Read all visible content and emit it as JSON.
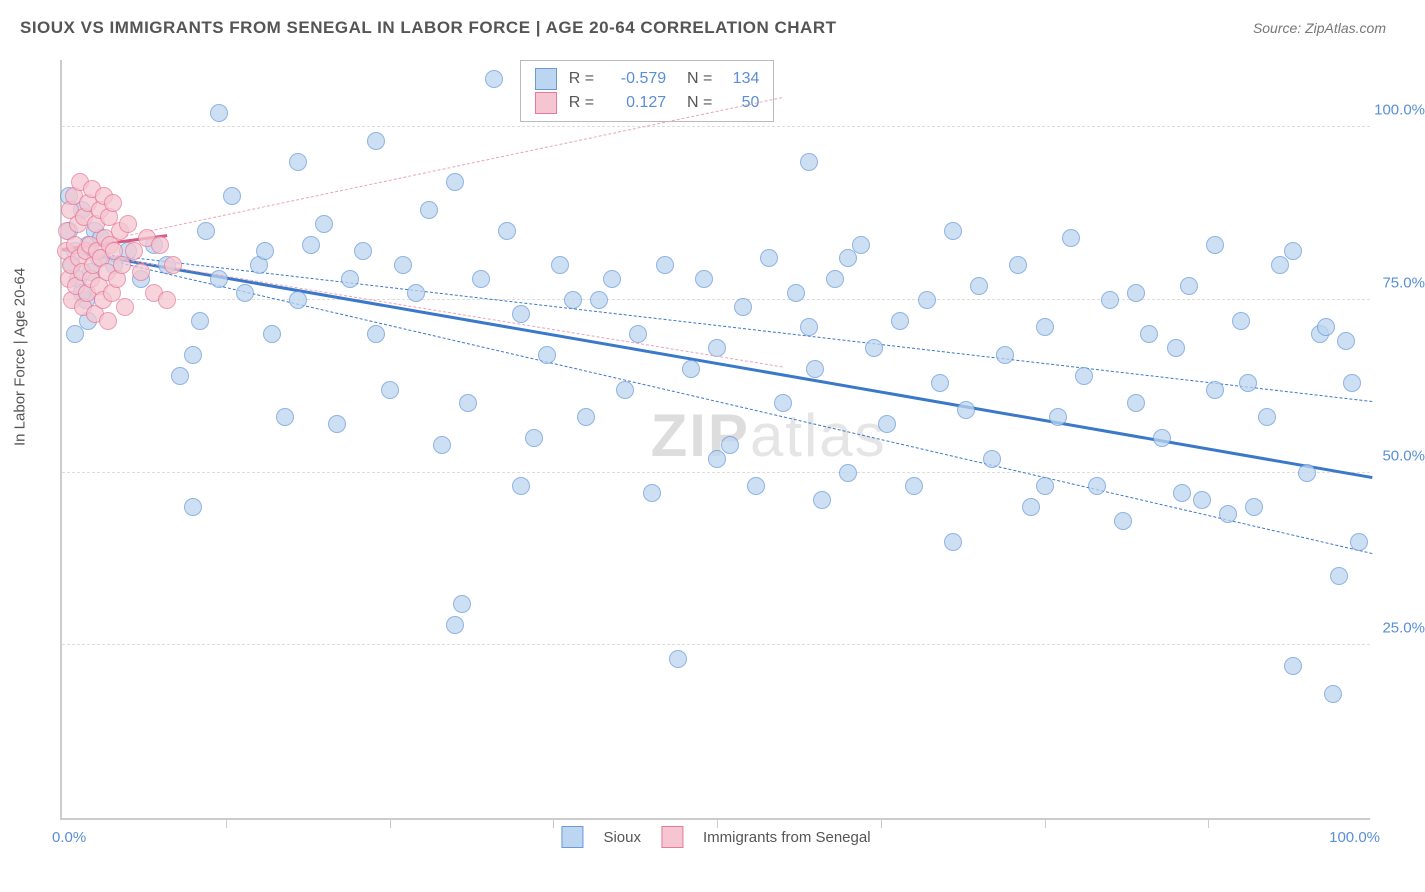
{
  "title": "SIOUX VS IMMIGRANTS FROM SENEGAL IN LABOR FORCE | AGE 20-64 CORRELATION CHART",
  "source": "Source: ZipAtlas.com",
  "watermark_bold": "ZIP",
  "watermark_thin": "atlas",
  "y_axis_title": "In Labor Force | Age 20-64",
  "chart": {
    "type": "scatter",
    "xlim": [
      0,
      100
    ],
    "ylim": [
      0,
      110
    ],
    "y_ticks": [
      25,
      50,
      75,
      100
    ],
    "y_tick_labels": [
      "25.0%",
      "50.0%",
      "75.0%",
      "100.0%"
    ],
    "x_ticks": [
      12.5,
      25,
      37.5,
      50,
      62.5,
      75,
      87.5
    ],
    "x_corner_left": "0.0%",
    "x_corner_right": "100.0%",
    "background_color": "#ffffff",
    "grid_color": "#dddddd",
    "axis_color": "#cccccc",
    "label_color": "#5a8fd6",
    "marker_radius": 9,
    "marker_stroke_width": 1,
    "series": [
      {
        "name": "Sioux",
        "fill_color": "#bcd5f0",
        "stroke_color": "#6a9bd8",
        "fill_opacity": 0.75,
        "trend": {
          "x1": 0,
          "y1": 82,
          "x2": 100,
          "y2": 49,
          "color": "#3a78c9",
          "width": 3
        },
        "cone": {
          "x1": 0,
          "y1": 82,
          "x2": 100,
          "y2_top": 38,
          "y2_bot": 60,
          "stroke": "#3a78c9"
        },
        "stats": {
          "R": "-0.579",
          "N": "134"
        },
        "points": [
          [
            0.5,
            85
          ],
          [
            0.8,
            80
          ],
          [
            1,
            82
          ],
          [
            1.2,
            78
          ],
          [
            1.5,
            88
          ],
          [
            1.8,
            75
          ],
          [
            2,
            83
          ],
          [
            2.2,
            79
          ],
          [
            2.5,
            85
          ],
          [
            2.8,
            81
          ],
          [
            3,
            84
          ],
          [
            4,
            80
          ],
          [
            5,
            82
          ],
          [
            6,
            78
          ],
          [
            7,
            83
          ],
          [
            8,
            80
          ],
          [
            0.5,
            90
          ],
          [
            1,
            70
          ],
          [
            1.5,
            76
          ],
          [
            2,
            72
          ],
          [
            9,
            64
          ],
          [
            10,
            67
          ],
          [
            10.5,
            72
          ],
          [
            11,
            85
          ],
          [
            12,
            78
          ],
          [
            13,
            90
          ],
          [
            14,
            76
          ],
          [
            15,
            80
          ],
          [
            15.5,
            82
          ],
          [
            16,
            70
          ],
          [
            17,
            58
          ],
          [
            18,
            75
          ],
          [
            19,
            83
          ],
          [
            20,
            86
          ],
          [
            21,
            57
          ],
          [
            22,
            78
          ],
          [
            23,
            82
          ],
          [
            24,
            70
          ],
          [
            25,
            62
          ],
          [
            26,
            80
          ],
          [
            27,
            76
          ],
          [
            28,
            88
          ],
          [
            29,
            54
          ],
          [
            30,
            28
          ],
          [
            30.5,
            31
          ],
          [
            31,
            60
          ],
          [
            32,
            78
          ],
          [
            33,
            107
          ],
          [
            34,
            85
          ],
          [
            35,
            73
          ],
          [
            36,
            55
          ],
          [
            37,
            67
          ],
          [
            38,
            80
          ],
          [
            39,
            75
          ],
          [
            40,
            58
          ],
          [
            41,
            75
          ],
          [
            42,
            78
          ],
          [
            43,
            62
          ],
          [
            44,
            70
          ],
          [
            45,
            47
          ],
          [
            46,
            80
          ],
          [
            47,
            23
          ],
          [
            48,
            65
          ],
          [
            49,
            78
          ],
          [
            50,
            68
          ],
          [
            51,
            54
          ],
          [
            52,
            74
          ],
          [
            53,
            48
          ],
          [
            54,
            81
          ],
          [
            55,
            60
          ],
          [
            56,
            76
          ],
          [
            57,
            71
          ],
          [
            57.5,
            65
          ],
          [
            58,
            46
          ],
          [
            59,
            78
          ],
          [
            60,
            50
          ],
          [
            61,
            83
          ],
          [
            62,
            68
          ],
          [
            63,
            57
          ],
          [
            64,
            72
          ],
          [
            65,
            48
          ],
          [
            66,
            75
          ],
          [
            67,
            63
          ],
          [
            68,
            40
          ],
          [
            69,
            59
          ],
          [
            70,
            77
          ],
          [
            71,
            52
          ],
          [
            72,
            67
          ],
          [
            73,
            80
          ],
          [
            74,
            45
          ],
          [
            75,
            71
          ],
          [
            76,
            58
          ],
          [
            77,
            84
          ],
          [
            78,
            64
          ],
          [
            79,
            48
          ],
          [
            80,
            75
          ],
          [
            81,
            43
          ],
          [
            82,
            60
          ],
          [
            83,
            70
          ],
          [
            84,
            55
          ],
          [
            85,
            68
          ],
          [
            85.5,
            47
          ],
          [
            86,
            77
          ],
          [
            87,
            46
          ],
          [
            88,
            62
          ],
          [
            89,
            44
          ],
          [
            90,
            72
          ],
          [
            90.5,
            63
          ],
          [
            91,
            45
          ],
          [
            92,
            58
          ],
          [
            93,
            80
          ],
          [
            94,
            22
          ],
          [
            95,
            50
          ],
          [
            96,
            70
          ],
          [
            96.5,
            71
          ],
          [
            97,
            18
          ],
          [
            97.5,
            35
          ],
          [
            98,
            69
          ],
          [
            98.5,
            63
          ],
          [
            99,
            40
          ],
          [
            12,
            102
          ],
          [
            18,
            95
          ],
          [
            24,
            98
          ],
          [
            30,
            92
          ],
          [
            10,
            45
          ],
          [
            35,
            48
          ],
          [
            50,
            52
          ],
          [
            94,
            82
          ],
          [
            60,
            81
          ],
          [
            68,
            85
          ],
          [
            75,
            48
          ],
          [
            82,
            76
          ],
          [
            88,
            83
          ],
          [
            57,
            95
          ]
        ]
      },
      {
        "name": "Immigrants from Senegal",
        "fill_color": "#f5c6d1",
        "stroke_color": "#e77a9a",
        "fill_opacity": 0.75,
        "trend": {
          "x1": 0,
          "y1": 82,
          "x2": 8,
          "y2": 84,
          "color": "#d85a80",
          "width": 3
        },
        "cone": {
          "x1": 0,
          "y1": 82,
          "x2": 55,
          "y2_top": 104,
          "y2_bot": 65,
          "stroke": "#e9a5b8"
        },
        "stats": {
          "R": "0.127",
          "N": "50"
        },
        "points": [
          [
            0.3,
            82
          ],
          [
            0.4,
            85
          ],
          [
            0.5,
            78
          ],
          [
            0.6,
            88
          ],
          [
            0.7,
            80
          ],
          [
            0.8,
            75
          ],
          [
            0.9,
            90
          ],
          [
            1.0,
            83
          ],
          [
            1.1,
            77
          ],
          [
            1.2,
            86
          ],
          [
            1.3,
            81
          ],
          [
            1.4,
            92
          ],
          [
            1.5,
            79
          ],
          [
            1.6,
            74
          ],
          [
            1.7,
            87
          ],
          [
            1.8,
            82
          ],
          [
            1.9,
            76
          ],
          [
            2.0,
            89
          ],
          [
            2.1,
            83
          ],
          [
            2.2,
            78
          ],
          [
            2.3,
            91
          ],
          [
            2.4,
            80
          ],
          [
            2.5,
            73
          ],
          [
            2.6,
            86
          ],
          [
            2.7,
            82
          ],
          [
            2.8,
            77
          ],
          [
            2.9,
            88
          ],
          [
            3.0,
            81
          ],
          [
            3.1,
            75
          ],
          [
            3.2,
            90
          ],
          [
            3.3,
            84
          ],
          [
            3.4,
            79
          ],
          [
            3.5,
            72
          ],
          [
            3.6,
            87
          ],
          [
            3.7,
            83
          ],
          [
            3.8,
            76
          ],
          [
            3.9,
            89
          ],
          [
            4.0,
            82
          ],
          [
            4.2,
            78
          ],
          [
            4.4,
            85
          ],
          [
            4.6,
            80
          ],
          [
            4.8,
            74
          ],
          [
            5.0,
            86
          ],
          [
            5.5,
            82
          ],
          [
            6.0,
            79
          ],
          [
            6.5,
            84
          ],
          [
            7.0,
            76
          ],
          [
            7.5,
            83
          ],
          [
            8.0,
            75
          ],
          [
            8.5,
            80
          ]
        ]
      }
    ]
  },
  "legend_bottom": {
    "items": [
      {
        "label": "Sioux",
        "fill": "#bcd5f0",
        "stroke": "#6a9bd8"
      },
      {
        "label": "Immigrants from Senegal",
        "fill": "#f5c6d1",
        "stroke": "#e77a9a"
      }
    ]
  }
}
